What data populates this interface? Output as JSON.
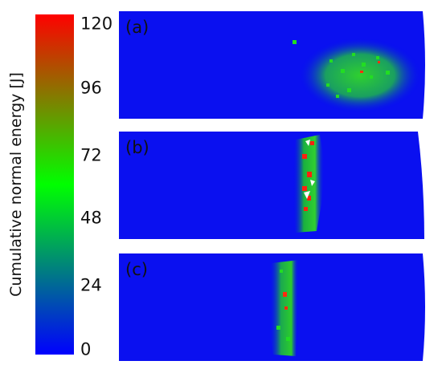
{
  "colorbar": {
    "label": "Cumulative normal energy [J]",
    "ticks": [
      "120",
      "96",
      "72",
      "48",
      "24",
      "0"
    ],
    "colors": {
      "low": "#0000ff",
      "mid": "#00ff00",
      "high": "#ff0000"
    }
  },
  "panels": [
    {
      "label": "(a)"
    },
    {
      "label": "(b)"
    },
    {
      "label": "(c)"
    }
  ]
}
